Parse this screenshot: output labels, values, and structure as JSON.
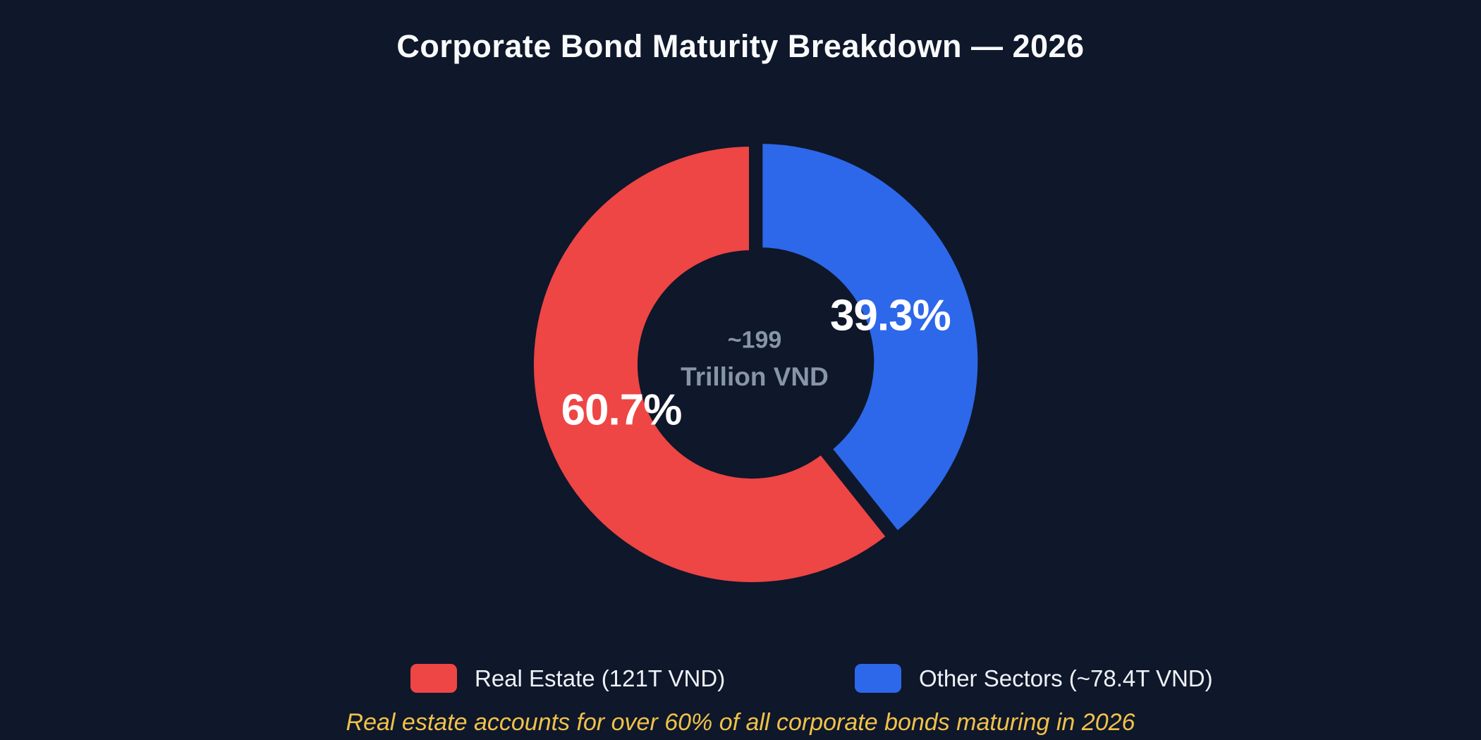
{
  "page": {
    "background_color": "#0f172a"
  },
  "chart_data": {
    "type": "pie",
    "subtype": "donut",
    "title": "Corporate Bond Maturity Breakdown — 2026",
    "start_angle": "top",
    "direction_of_second_slice": "clockwise-from-top",
    "center_label": {
      "line1": "~199",
      "line2": "Trillion VND",
      "color": "#8795a9"
    },
    "slices": [
      {
        "label": "Real Estate",
        "legend_label": "Real Estate (121T VND)",
        "value_trillion_vnd": 121,
        "pct": 60.7,
        "pct_label": "60.7%",
        "color": "#ee4545",
        "exploded": false
      },
      {
        "label": "Other Sectors",
        "legend_label": "Other Sectors (~78.4T VND)",
        "value_trillion_vnd": 78.4,
        "pct": 39.3,
        "pct_label": "39.3%",
        "color": "#2d68ea",
        "exploded": true
      }
    ],
    "total_label": "~199 Trillion VND",
    "legend_position": "bottom",
    "annotation": "Real estate accounts for over 60% of all corporate bonds maturing in 2026",
    "annotation_color": "#f0c24a"
  }
}
